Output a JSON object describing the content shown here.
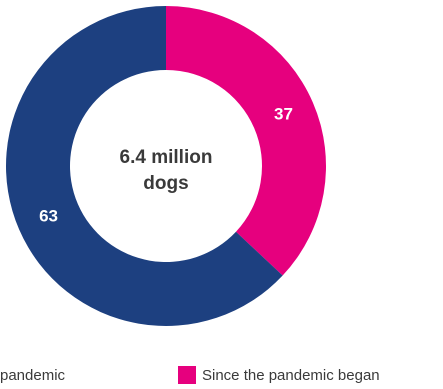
{
  "chart_data": {
    "type": "pie",
    "donut": true,
    "center_label": {
      "line1": "6.4 million",
      "line2": "dogs"
    },
    "slices": [
      {
        "label": "Since the pandemic began",
        "value": 37,
        "color": "#e6007e"
      },
      {
        "label": "pandemic",
        "value": 63,
        "color": "#1d4080"
      }
    ],
    "legend": [
      {
        "label": "pandemic",
        "color": "#1d4080"
      },
      {
        "label": "Since the pandemic began",
        "color": "#e6007e"
      }
    ]
  }
}
